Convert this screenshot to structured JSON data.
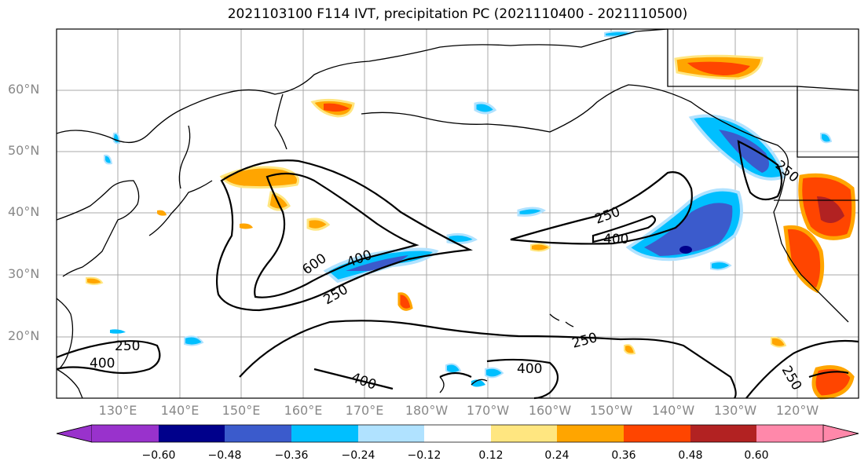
{
  "title": "2021103100 F114 IVT, precipitation PC (2021110400 - 2021110500)",
  "latitude_labels": [
    "60°N",
    "50°N",
    "40°N",
    "30°N",
    "20°N"
  ],
  "longitude_labels": [
    "130°E",
    "140°E",
    "150°E",
    "160°E",
    "170°E",
    "180°W",
    "170°W",
    "160°W",
    "150°W",
    "140°W",
    "130°W",
    "120°W"
  ],
  "ivt_contour_labels": [
    "250",
    "400",
    "600",
    "400",
    "250",
    "250",
    "400",
    "250",
    "400",
    "400",
    "250",
    "250"
  ],
  "colorbar": {
    "tick_labels": [
      "−0.60",
      "−0.48",
      "−0.36",
      "−0.24",
      "−0.12",
      "0.12",
      "0.24",
      "0.36",
      "0.48",
      "0.60"
    ],
    "colors": [
      "#9932cc",
      "#00008b",
      "#3b5bcc",
      "#00bfff",
      "#b0e2ff",
      "#ffffff",
      "#ffe680",
      "#ffa500",
      "#ff4500",
      "#b22222",
      "#ff88aa"
    ]
  },
  "colors": {
    "land_outline": "#000000",
    "gridline": "#a9a9a9",
    "ivt_contour": "#000000",
    "axis_label": "#888888"
  }
}
